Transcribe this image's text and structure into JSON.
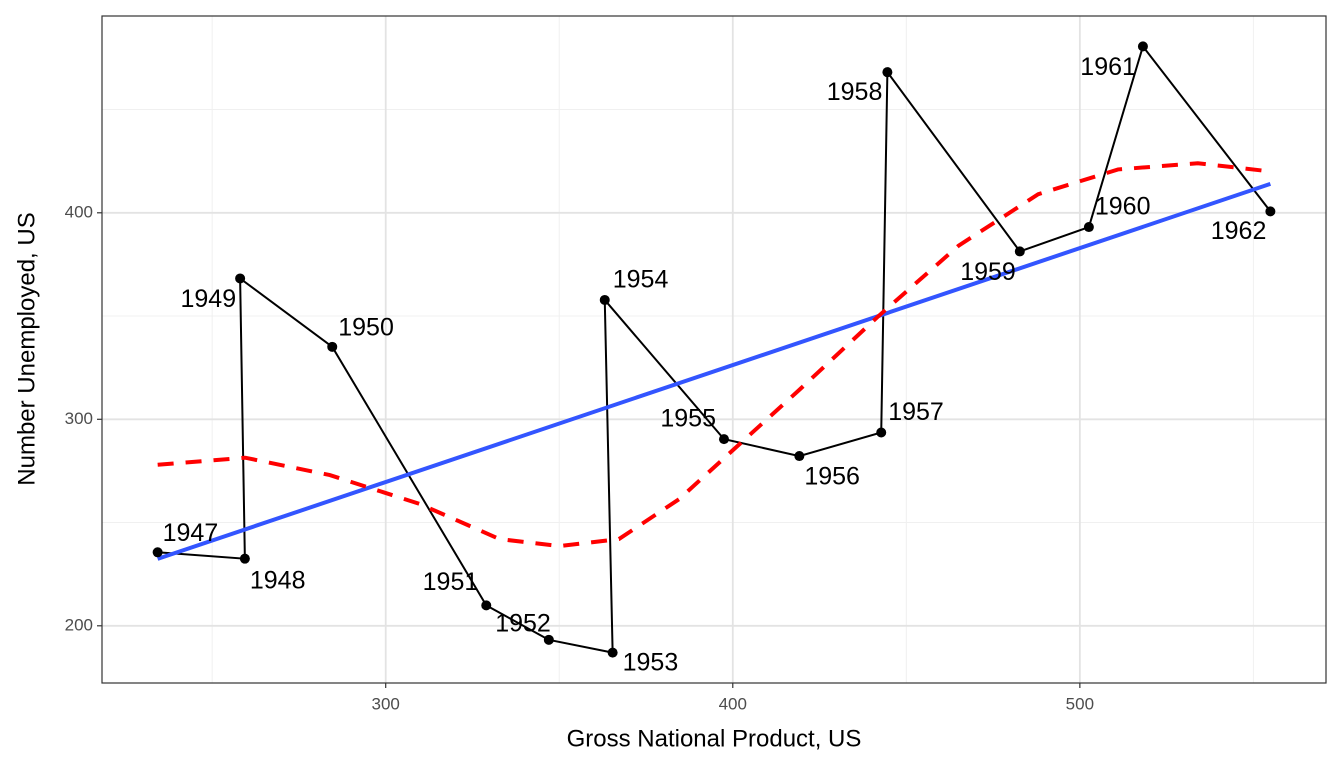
{
  "chart_data": {
    "type": "scatter",
    "x_label": "Gross National Product, US",
    "y_label": "Number Unemployed, US",
    "xlim": [
      218.26,
      570.92
    ],
    "ylim": [
      172.3,
      495.3
    ],
    "xticks": [
      300,
      400,
      500
    ],
    "yticks": [
      200,
      300,
      400
    ],
    "grid": true,
    "point_color": "#000000",
    "path_color": "#000000",
    "labels": [
      "1947",
      "1948",
      "1949",
      "1950",
      "1951",
      "1952",
      "1953",
      "1954",
      "1955",
      "1956",
      "1957",
      "1958",
      "1959",
      "1960",
      "1961",
      "1962"
    ],
    "x": [
      234.289,
      259.426,
      258.054,
      284.599,
      328.975,
      346.999,
      365.385,
      363.112,
      397.469,
      419.18,
      442.769,
      444.546,
      482.704,
      502.601,
      518.173,
      554.894
    ],
    "y": [
      235.6,
      232.5,
      368.2,
      335.1,
      209.9,
      193.2,
      187.0,
      357.8,
      290.4,
      282.2,
      293.6,
      468.1,
      381.3,
      393.1,
      480.6,
      400.7
    ],
    "series": [
      {
        "color": "#3355ff",
        "dashed": false,
        "x": [
          234.289,
          554.894
        ],
        "y": [
          232.4,
          414
        ]
      },
      {
        "color": "#ff0000",
        "dashed": true,
        "x": [
          234.3,
          259.5,
          283.9,
          309.8,
          332.8,
          350,
          367.2,
          384.5,
          400,
          419,
          442,
          465,
          488,
          511,
          534,
          555
        ],
        "y": [
          278,
          281.4,
          273,
          259,
          242,
          238.6,
          242,
          261.3,
          285,
          314,
          350,
          384,
          409,
          421,
          424,
          420
        ]
      }
    ]
  }
}
